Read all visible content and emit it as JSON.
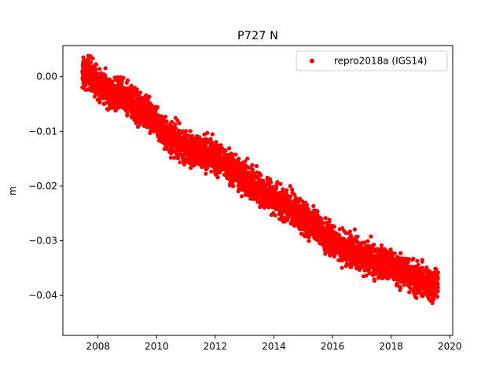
{
  "chart_data": {
    "type": "scatter",
    "title": "P727 N",
    "xlabel": "",
    "ylabel": "m",
    "xlim": [
      2006.8,
      2020.1
    ],
    "ylim": [
      -0.0473,
      0.0057
    ],
    "xticks": [
      2008,
      2010,
      2012,
      2014,
      2016,
      2018,
      2020
    ],
    "xtick_labels": [
      "2008",
      "2010",
      "2012",
      "2014",
      "2016",
      "2018",
      "2020"
    ],
    "yticks": [
      0.0,
      -0.01,
      -0.02,
      -0.03,
      -0.04
    ],
    "ytick_labels": [
      "0.00",
      "−0.01",
      "−0.02",
      "−0.03",
      "−0.04"
    ],
    "grid": false,
    "legend_position": "upper right",
    "series": [
      {
        "name": "repro2018a (IGS14)",
        "color": "#ff0000",
        "marker": "circle",
        "x": [
          2007.45,
          2007.6,
          2007.75,
          2007.9,
          2008.05,
          2008.2,
          2008.35,
          2008.5,
          2008.65,
          2008.8,
          2008.95,
          2009.1,
          2009.25,
          2009.4,
          2009.55,
          2009.7,
          2009.85,
          2010.0,
          2010.15,
          2010.3,
          2010.45,
          2010.6,
          2010.75,
          2010.9,
          2011.05,
          2011.2,
          2011.35,
          2011.5,
          2011.65,
          2011.8,
          2011.95,
          2012.1,
          2012.25,
          2012.4,
          2012.55,
          2012.7,
          2012.85,
          2013.0,
          2013.15,
          2013.3,
          2013.45,
          2013.6,
          2013.75,
          2013.9,
          2014.05,
          2014.2,
          2014.35,
          2014.5,
          2014.65,
          2014.8,
          2014.95,
          2015.1,
          2015.25,
          2015.4,
          2015.55,
          2015.7,
          2015.85,
          2016.0,
          2016.15,
          2016.3,
          2016.45,
          2016.6,
          2016.75,
          2016.9,
          2017.05,
          2017.2,
          2017.35,
          2017.5,
          2017.65,
          2017.8,
          2017.95,
          2018.1,
          2018.25,
          2018.4,
          2018.55,
          2018.7,
          2018.85,
          2019.0,
          2019.15,
          2019.3,
          2019.45
        ],
        "y": [
          0.0,
          0.001,
          0.0005,
          -0.0005,
          -0.0015,
          -0.002,
          -0.0025,
          -0.0035,
          -0.003,
          -0.0035,
          -0.004,
          -0.0045,
          -0.0055,
          -0.006,
          -0.006,
          -0.0065,
          -0.0075,
          -0.008,
          -0.0095,
          -0.0105,
          -0.011,
          -0.0115,
          -0.012,
          -0.0125,
          -0.013,
          -0.0135,
          -0.0135,
          -0.014,
          -0.014,
          -0.0145,
          -0.0145,
          -0.015,
          -0.0155,
          -0.016,
          -0.0165,
          -0.0175,
          -0.018,
          -0.0185,
          -0.019,
          -0.02,
          -0.0205,
          -0.021,
          -0.0215,
          -0.022,
          -0.0225,
          -0.023,
          -0.0235,
          -0.024,
          -0.0245,
          -0.025,
          -0.0255,
          -0.026,
          -0.0265,
          -0.027,
          -0.028,
          -0.029,
          -0.0295,
          -0.03,
          -0.0305,
          -0.031,
          -0.0315,
          -0.0315,
          -0.032,
          -0.0325,
          -0.033,
          -0.0335,
          -0.0335,
          -0.034,
          -0.034,
          -0.0345,
          -0.0345,
          -0.035,
          -0.0355,
          -0.0355,
          -0.036,
          -0.0365,
          -0.037,
          -0.0375,
          -0.0375,
          -0.038,
          -0.038
        ],
        "scatter_spread": 0.0022,
        "points_per_sample": 55
      }
    ]
  }
}
